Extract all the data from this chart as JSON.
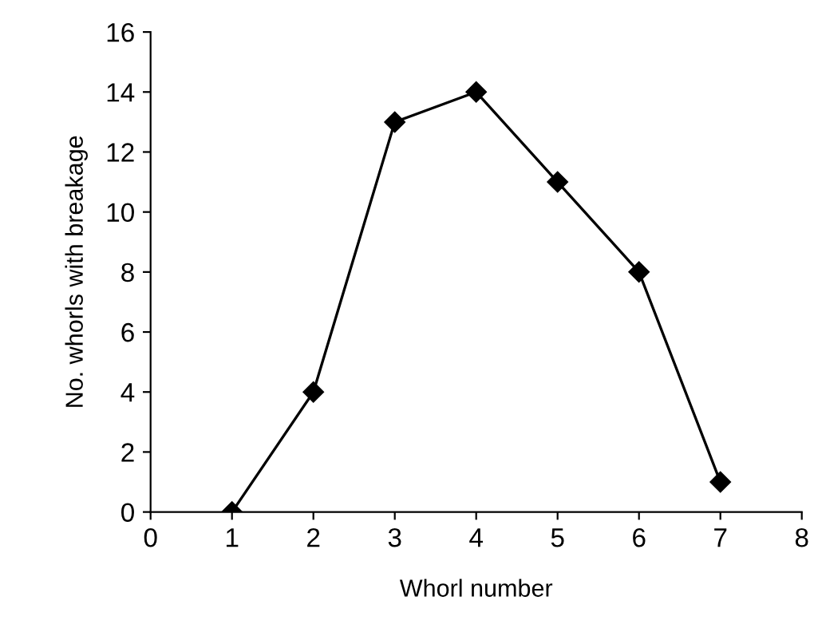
{
  "chart_data": {
    "type": "line",
    "xlabel": "Whorl number",
    "ylabel": "No. whorls with breakage",
    "x": [
      1,
      2,
      3,
      4,
      5,
      6,
      7
    ],
    "series": [
      {
        "color": "#000000",
        "values": [
          0,
          4,
          13,
          14,
          11,
          8,
          1
        ]
      }
    ],
    "xlim": [
      0,
      8
    ],
    "xticks": [
      0,
      1,
      2,
      3,
      4,
      5,
      6,
      7,
      8
    ],
    "ylim": [
      0,
      16
    ],
    "yticks": [
      0,
      2,
      4,
      6,
      8,
      10,
      12,
      14,
      16
    ],
    "marker": "diamond",
    "line_style": "solid",
    "grid": false,
    "legend": false
  }
}
